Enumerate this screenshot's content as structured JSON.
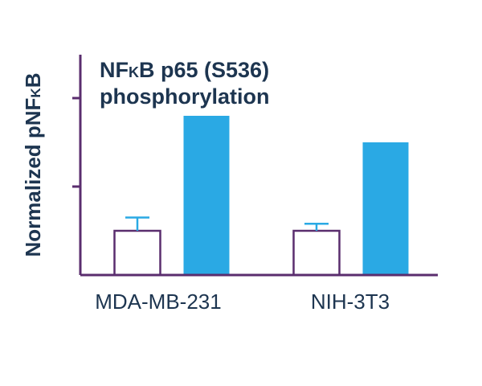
{
  "chart_data": {
    "type": "bar",
    "title": {
      "line1_prefix": "NF",
      "line1_small": "K",
      "line1_suffix": "B p65 (S536)",
      "line2": "phosphorylation"
    },
    "ylabel": {
      "prefix": "Normalized pNF",
      "small": "K",
      "suffix": "B"
    },
    "xlabel": "",
    "categories": [
      "MDA-MB-231",
      "NIH-3T3"
    ],
    "series": [
      {
        "style": "outline",
        "values": [
          0.5,
          0.5
        ],
        "errors": [
          0.15,
          0.08
        ]
      },
      {
        "style": "filled",
        "values": [
          1.8,
          1.5
        ],
        "errors": [
          0,
          0
        ]
      }
    ],
    "ylim": [
      0,
      2.5
    ],
    "yticks": [
      1,
      2
    ],
    "grid": false,
    "legend": "none",
    "colors": {
      "axis": "#5a2d6e",
      "text": "#1d3550",
      "filled_bar": "#2aa9e4",
      "outline_bar": "#5a2d6e",
      "error_bar": "#2aa9e4"
    }
  }
}
